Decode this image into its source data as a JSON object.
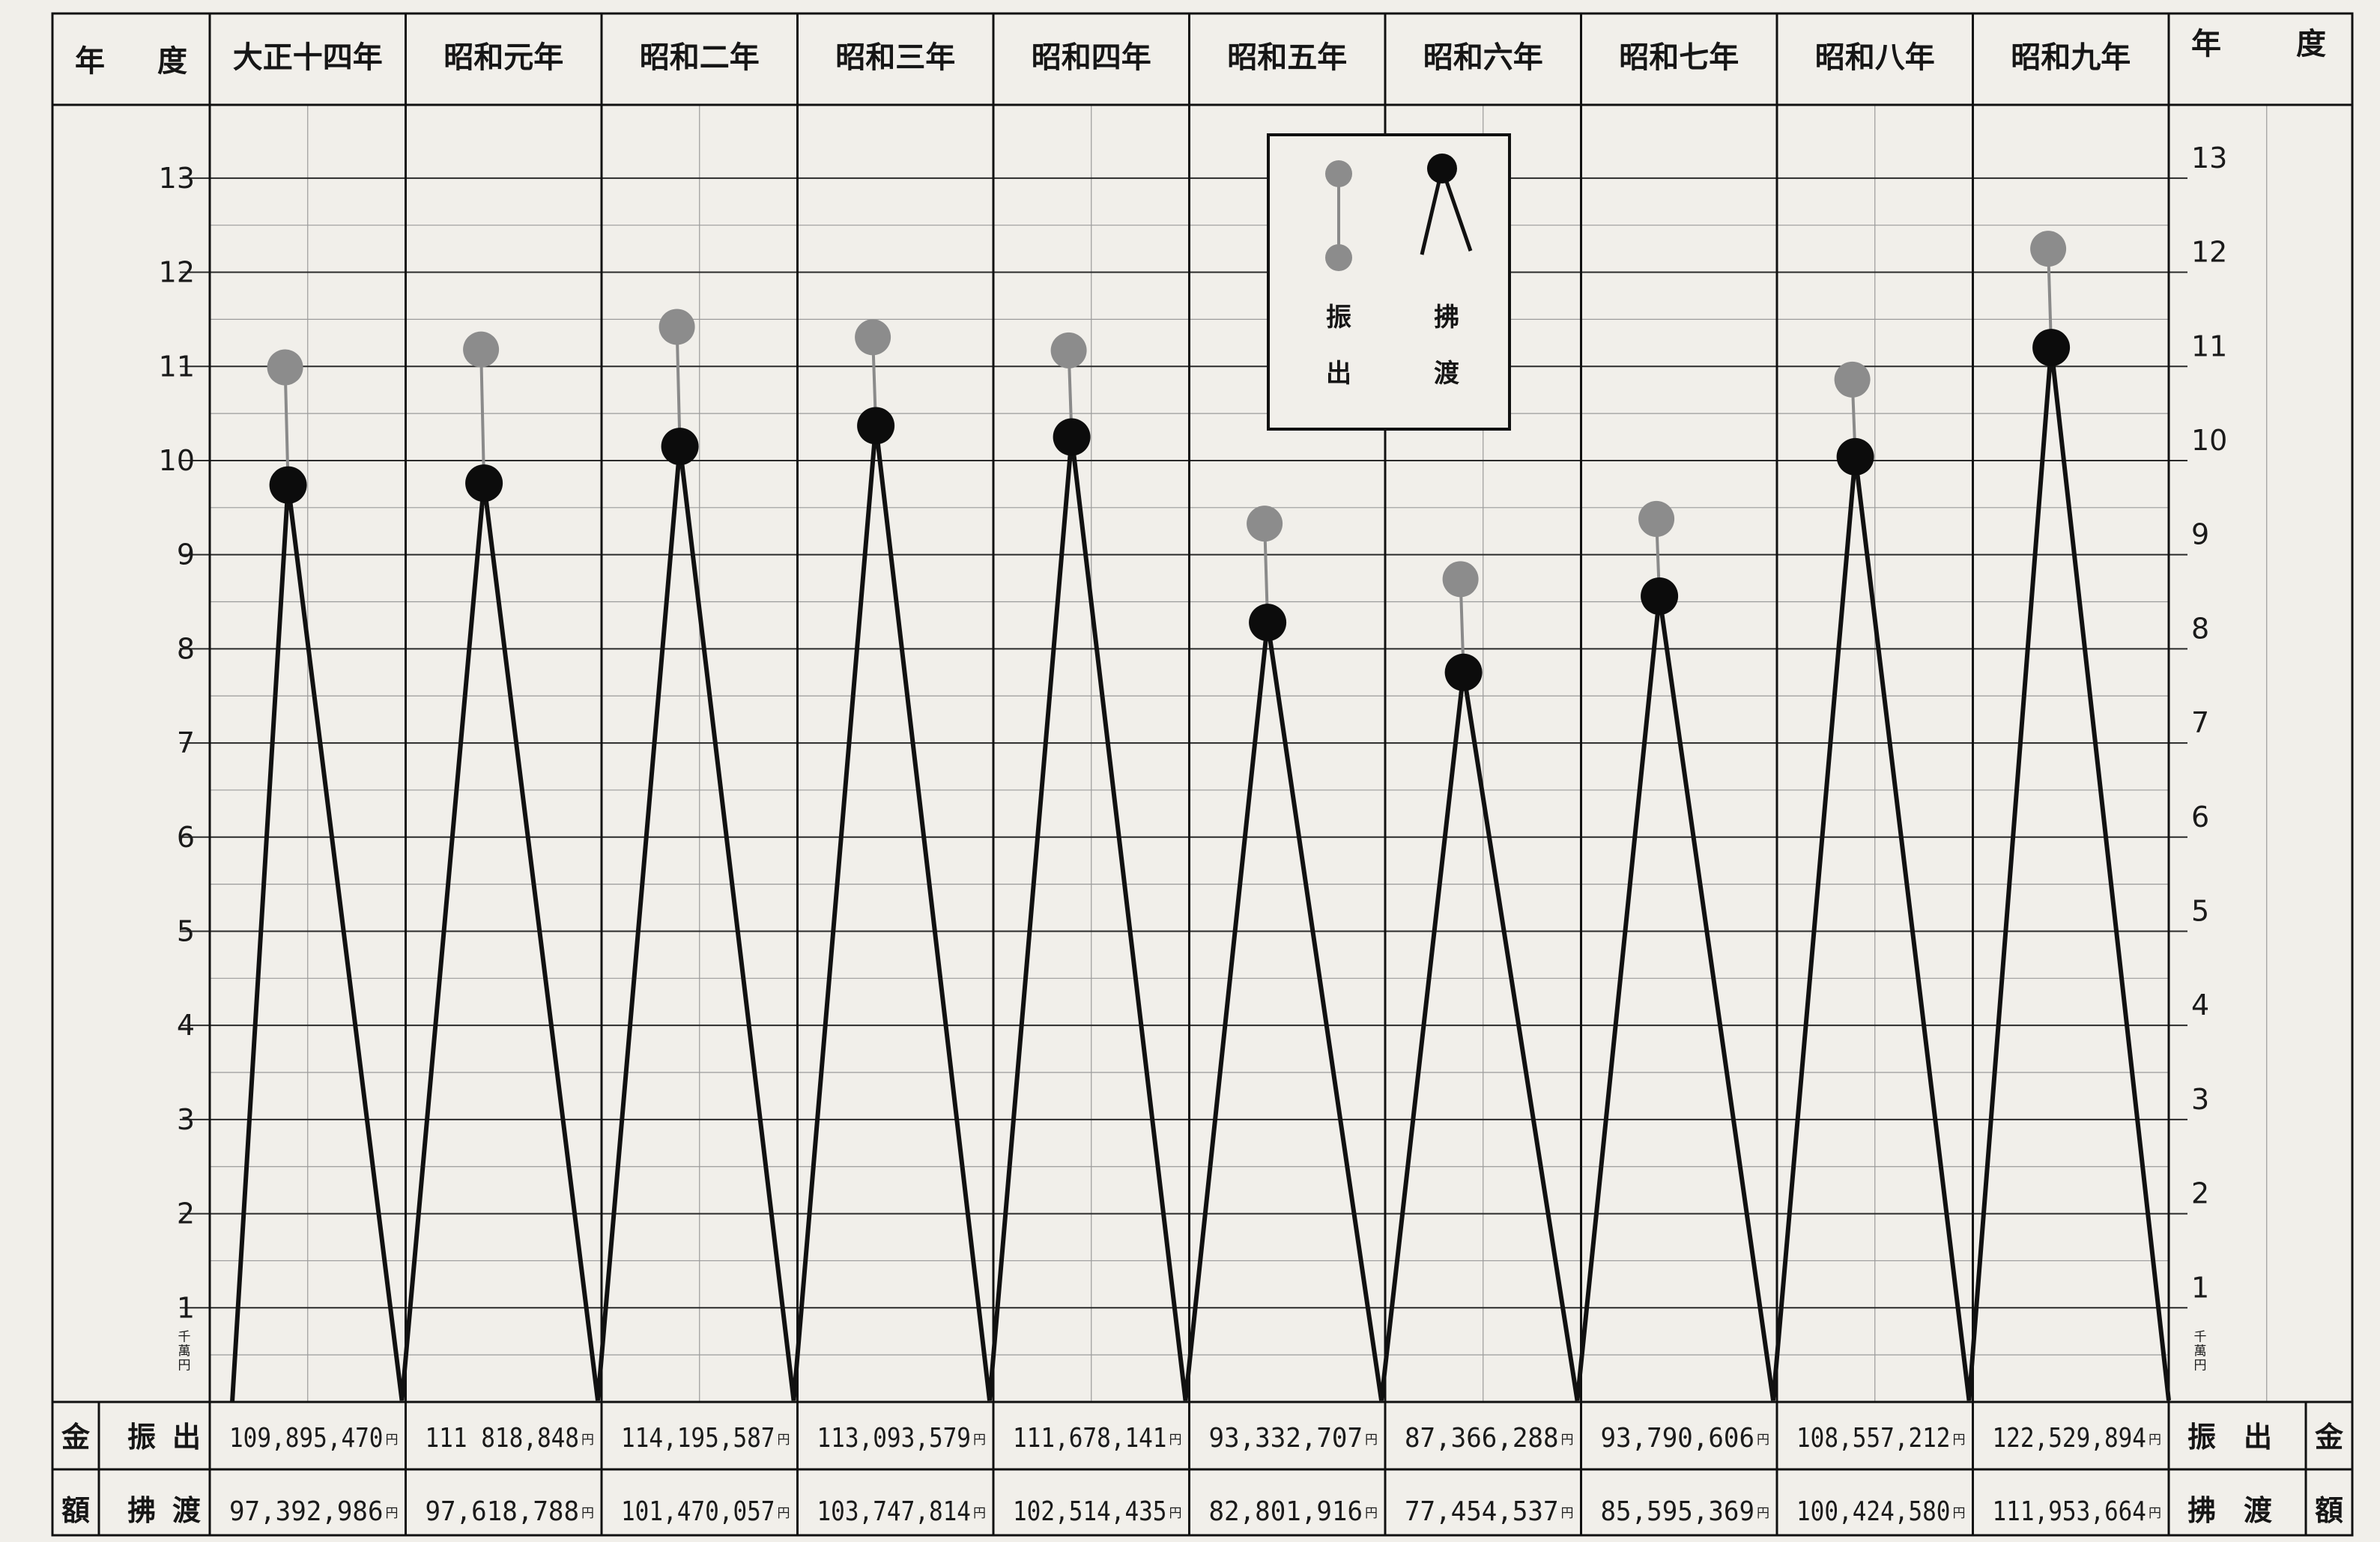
{
  "header": {
    "left_label": [
      "年",
      "度"
    ],
    "right_label": [
      "年",
      "度"
    ]
  },
  "footer": {
    "left_group": "金額",
    "right_group": "金額",
    "row1_label": [
      "振",
      "出"
    ],
    "row2_label": [
      "拂",
      "渡"
    ],
    "yen_suffix": "円"
  },
  "legend": {
    "series1": [
      "振",
      "出"
    ],
    "series2": [
      "拂",
      "渡"
    ]
  },
  "colors": {
    "paper": "#f1efea",
    "ink": "#111111",
    "grid": "#2b2b2b",
    "furidashi_marker": "#8c8c8c",
    "haraiwatashi_marker": "#0c0c0c"
  },
  "chart_data": {
    "type": "line",
    "unit_label": [
      "千",
      "萬",
      "円"
    ],
    "categories": [
      "大正十四年",
      "昭和元年",
      "昭和二年",
      "昭和三年",
      "昭和四年",
      "昭和五年",
      "昭和六年",
      "昭和七年",
      "昭和八年",
      "昭和九年"
    ],
    "yticks_left": [
      "1",
      "2",
      "3",
      "4",
      "5",
      "6",
      "7",
      "8",
      "9",
      "10",
      "11",
      "12",
      "13"
    ],
    "yticks_right": [
      "1",
      "2",
      "3",
      "4",
      "5",
      "6",
      "7",
      "8",
      "9",
      "10",
      "11",
      "12",
      "13"
    ],
    "ylim": [
      0,
      13.5
    ],
    "grid": true,
    "legend_position": "top-right",
    "series": [
      {
        "name": "振出",
        "marker": "gray dot",
        "values": [
          10.99,
          11.18,
          11.42,
          11.31,
          11.17,
          9.33,
          8.74,
          9.38,
          10.86,
          12.25
        ],
        "table_values": [
          "109,895,470",
          "111 818,848",
          "114,195,587",
          "113,093,579",
          "111,678,141",
          "93,332,707",
          "87,366,288",
          "93,790,606",
          "108,557,212",
          "122,529,894"
        ]
      },
      {
        "name": "拂渡",
        "marker": "black dot with zigzag",
        "values": [
          9.74,
          9.76,
          10.15,
          10.37,
          10.25,
          8.28,
          7.75,
          8.56,
          10.04,
          11.2
        ],
        "table_values": [
          "97,392,986",
          "97,618,788",
          "101,470,057",
          "103,747,814",
          "102,514,435",
          "82,801,916",
          "77,454,537",
          "85,595,369",
          "100,424,580",
          "111,953,664"
        ]
      }
    ]
  }
}
